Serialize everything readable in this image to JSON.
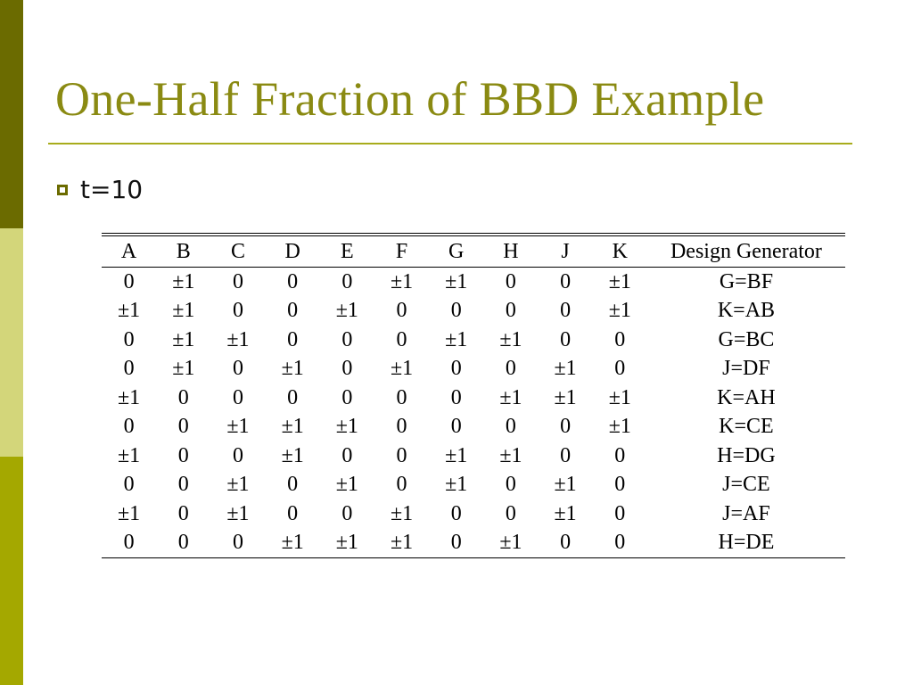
{
  "slide": {
    "title": "One-Half Fraction of BBD Example",
    "bullet": "t=10"
  },
  "table": {
    "headers": [
      "A",
      "B",
      "C",
      "D",
      "E",
      "F",
      "G",
      "H",
      "J",
      "K",
      "Design Generator"
    ],
    "rows": [
      [
        "0",
        "±1",
        "0",
        "0",
        "0",
        "±1",
        "±1",
        "0",
        "0",
        "±1",
        "G=BF"
      ],
      [
        "±1",
        "±1",
        "0",
        "0",
        "±1",
        "0",
        "0",
        "0",
        "0",
        "±1",
        "K=AB"
      ],
      [
        "0",
        "±1",
        "±1",
        "0",
        "0",
        "0",
        "±1",
        "±1",
        "0",
        "0",
        "G=BC"
      ],
      [
        "0",
        "±1",
        "0",
        "±1",
        "0",
        "±1",
        "0",
        "0",
        "±1",
        "0",
        "J=DF"
      ],
      [
        "±1",
        "0",
        "0",
        "0",
        "0",
        "0",
        "0",
        "±1",
        "±1",
        "±1",
        "K=AH"
      ],
      [
        "0",
        "0",
        "±1",
        "±1",
        "±1",
        "0",
        "0",
        "0",
        "0",
        "±1",
        "K=CE"
      ],
      [
        "±1",
        "0",
        "0",
        "±1",
        "0",
        "0",
        "±1",
        "±1",
        "0",
        "0",
        "H=DG"
      ],
      [
        "0",
        "0",
        "±1",
        "0",
        "±1",
        "0",
        "±1",
        "0",
        "±1",
        "0",
        "J=CE"
      ],
      [
        "±1",
        "0",
        "±1",
        "0",
        "0",
        "±1",
        "0",
        "0",
        "±1",
        "0",
        "J=AF"
      ],
      [
        "0",
        "0",
        "0",
        "±1",
        "±1",
        "±1",
        "0",
        "±1",
        "0",
        "0",
        "H=DE"
      ]
    ]
  }
}
